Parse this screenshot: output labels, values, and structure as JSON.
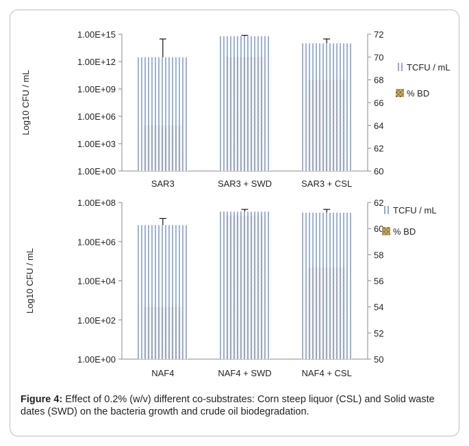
{
  "caption": {
    "label": "Figure 4:",
    "text": " Effect of 0.2% (w/v) different co-substrates: Corn steep liquor (CSL) and Solid waste dates (SWD) on the bacteria growth and crude oil biodegradation."
  },
  "colors": {
    "bar_outline": "#4a6fb0",
    "bd_fill": "#c9ad6e",
    "axis": "#888888",
    "text": "#222222"
  },
  "chart_data": [
    {
      "type": "bar",
      "categories": [
        "SAR3",
        "SAR3 + SWD",
        "SAR3 + CSL"
      ],
      "ylabel": "Log10 CFU / mL",
      "y_scale": "log",
      "ylim": [
        1,
        1000000000000000.0
      ],
      "yticks": [
        "1.00E+00",
        "1.00E+03",
        "1.00E+06",
        "1.00E+09",
        "1.00E+12",
        "1.00E+15"
      ],
      "y2lim": [
        60,
        72
      ],
      "y2ticks": [
        "60",
        "62",
        "64",
        "66",
        "68",
        "70",
        "72"
      ],
      "legend": [
        "TCFU / mL",
        "% BD"
      ],
      "series": [
        {
          "name": "TCFU / mL",
          "axis": "left",
          "values": [
            3000000000000.0,
            600000000000000.0,
            100000000000000.0
          ],
          "error_high": [
            300000000000000.0,
            750000000000000.0,
            300000000000000.0
          ]
        },
        {
          "name": "% BD",
          "axis": "right",
          "values": [
            64,
            70,
            68
          ]
        }
      ]
    },
    {
      "type": "bar",
      "categories": [
        "NAF4",
        "NAF4 + SWD",
        "NAF4 +  CSL"
      ],
      "ylabel": "Log10 CFU / mL",
      "y_scale": "log",
      "ylim": [
        1,
        1000000000.0
      ],
      "yticks": [
        "1.00E+00",
        "1.00E+02",
        "1.00E+04",
        "1.00E+06",
        "1.00E+08"
      ],
      "y2lim": [
        50,
        62
      ],
      "y2ticks": [
        "50",
        "52",
        "54",
        "56",
        "58",
        "60",
        "62"
      ],
      "legend": [
        "TCFU / mL",
        "% BD"
      ],
      "series": [
        {
          "name": "TCFU / mL",
          "axis": "left",
          "values": [
            50000000.0,
            300000000.0,
            260000000.0
          ],
          "error_high": [
            120000000.0,
            400000000.0,
            400000000.0
          ]
        },
        {
          "name": "% BD",
          "axis": "right",
          "values": [
            54,
            61,
            57
          ]
        }
      ]
    }
  ]
}
